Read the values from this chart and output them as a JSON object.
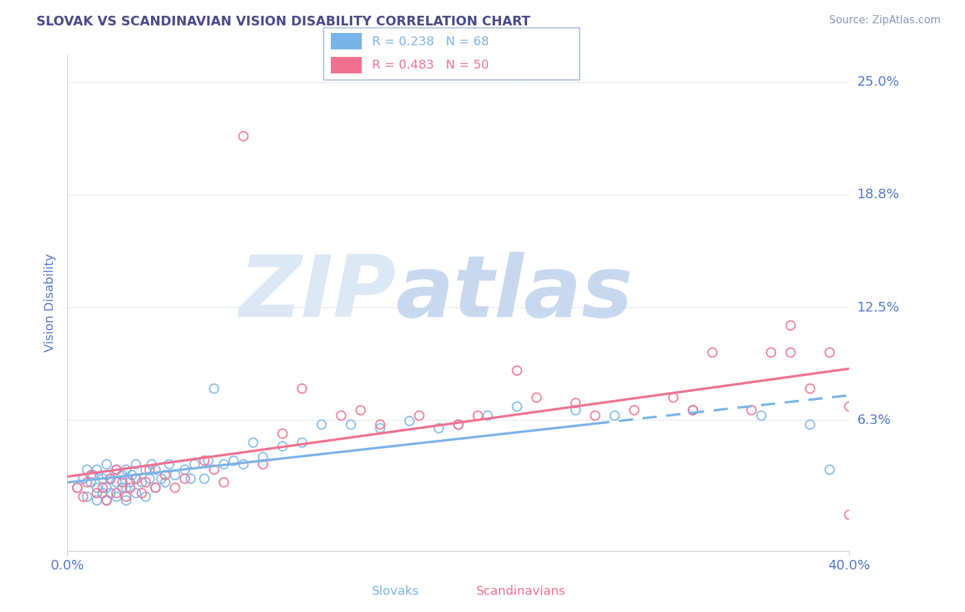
{
  "title": "SLOVAK VS SCANDINAVIAN VISION DISABILITY CORRELATION CHART",
  "source": "Source: ZipAtlas.com",
  "ylabel": "Vision Disability",
  "ytick_labels": [
    "25.0%",
    "18.8%",
    "12.5%",
    "6.3%"
  ],
  "ytick_values": [
    0.25,
    0.1875,
    0.125,
    0.0625
  ],
  "xmin": 0.0,
  "xmax": 0.4,
  "ymin": -0.01,
  "ymax": 0.265,
  "title_color": "#4a4a8a",
  "source_color": "#8899bb",
  "axis_label_color": "#5577cc",
  "tick_label_color": "#5577cc",
  "grid_color": "#d0d8e8",
  "watermark_zip_color": "#dde8f5",
  "watermark_atlas_color": "#c8d8ef",
  "slovak_color": "#7ab3e8",
  "scandinavian_color": "#f07090",
  "slovak_r": 0.238,
  "slovak_n": 68,
  "scandinavian_r": 0.483,
  "scandinavian_n": 50,
  "slovak_line_solid_end": 0.27,
  "slovak_points_x": [
    0.005,
    0.008,
    0.01,
    0.01,
    0.012,
    0.013,
    0.015,
    0.015,
    0.015,
    0.018,
    0.018,
    0.02,
    0.02,
    0.02,
    0.02,
    0.022,
    0.022,
    0.025,
    0.025,
    0.025,
    0.028,
    0.028,
    0.03,
    0.03,
    0.03,
    0.032,
    0.033,
    0.035,
    0.035,
    0.035,
    0.038,
    0.04,
    0.04,
    0.042,
    0.043,
    0.045,
    0.045,
    0.048,
    0.05,
    0.052,
    0.055,
    0.06,
    0.063,
    0.065,
    0.07,
    0.072,
    0.075,
    0.08,
    0.085,
    0.09,
    0.095,
    0.1,
    0.11,
    0.12,
    0.13,
    0.145,
    0.16,
    0.175,
    0.19,
    0.2,
    0.215,
    0.23,
    0.26,
    0.28,
    0.32,
    0.355,
    0.38,
    0.39
  ],
  "slovak_points_y": [
    0.025,
    0.03,
    0.02,
    0.035,
    0.028,
    0.032,
    0.018,
    0.025,
    0.035,
    0.022,
    0.03,
    0.018,
    0.025,
    0.032,
    0.038,
    0.022,
    0.03,
    0.02,
    0.028,
    0.035,
    0.025,
    0.032,
    0.018,
    0.025,
    0.035,
    0.028,
    0.032,
    0.022,
    0.03,
    0.038,
    0.028,
    0.02,
    0.035,
    0.03,
    0.038,
    0.025,
    0.035,
    0.03,
    0.028,
    0.038,
    0.032,
    0.035,
    0.03,
    0.038,
    0.03,
    0.04,
    0.08,
    0.038,
    0.04,
    0.038,
    0.05,
    0.042,
    0.048,
    0.05,
    0.06,
    0.06,
    0.058,
    0.062,
    0.058,
    0.06,
    0.065,
    0.07,
    0.068,
    0.065,
    0.068,
    0.065,
    0.06,
    0.035
  ],
  "scand_points_x": [
    0.005,
    0.008,
    0.01,
    0.012,
    0.015,
    0.018,
    0.02,
    0.022,
    0.025,
    0.025,
    0.028,
    0.03,
    0.032,
    0.035,
    0.038,
    0.04,
    0.042,
    0.045,
    0.05,
    0.055,
    0.06,
    0.07,
    0.075,
    0.08,
    0.09,
    0.1,
    0.11,
    0.12,
    0.14,
    0.15,
    0.16,
    0.18,
    0.2,
    0.21,
    0.23,
    0.24,
    0.26,
    0.27,
    0.29,
    0.31,
    0.32,
    0.33,
    0.35,
    0.36,
    0.37,
    0.37,
    0.38,
    0.39,
    0.4,
    0.4
  ],
  "scand_points_y": [
    0.025,
    0.02,
    0.028,
    0.032,
    0.022,
    0.025,
    0.018,
    0.03,
    0.022,
    0.035,
    0.028,
    0.02,
    0.025,
    0.03,
    0.022,
    0.028,
    0.035,
    0.025,
    0.032,
    0.025,
    0.03,
    0.04,
    0.035,
    0.028,
    0.22,
    0.038,
    0.055,
    0.08,
    0.065,
    0.068,
    0.06,
    0.065,
    0.06,
    0.065,
    0.09,
    0.075,
    0.072,
    0.065,
    0.068,
    0.075,
    0.068,
    0.1,
    0.068,
    0.1,
    0.1,
    0.115,
    0.08,
    0.1,
    0.07,
    0.01
  ]
}
